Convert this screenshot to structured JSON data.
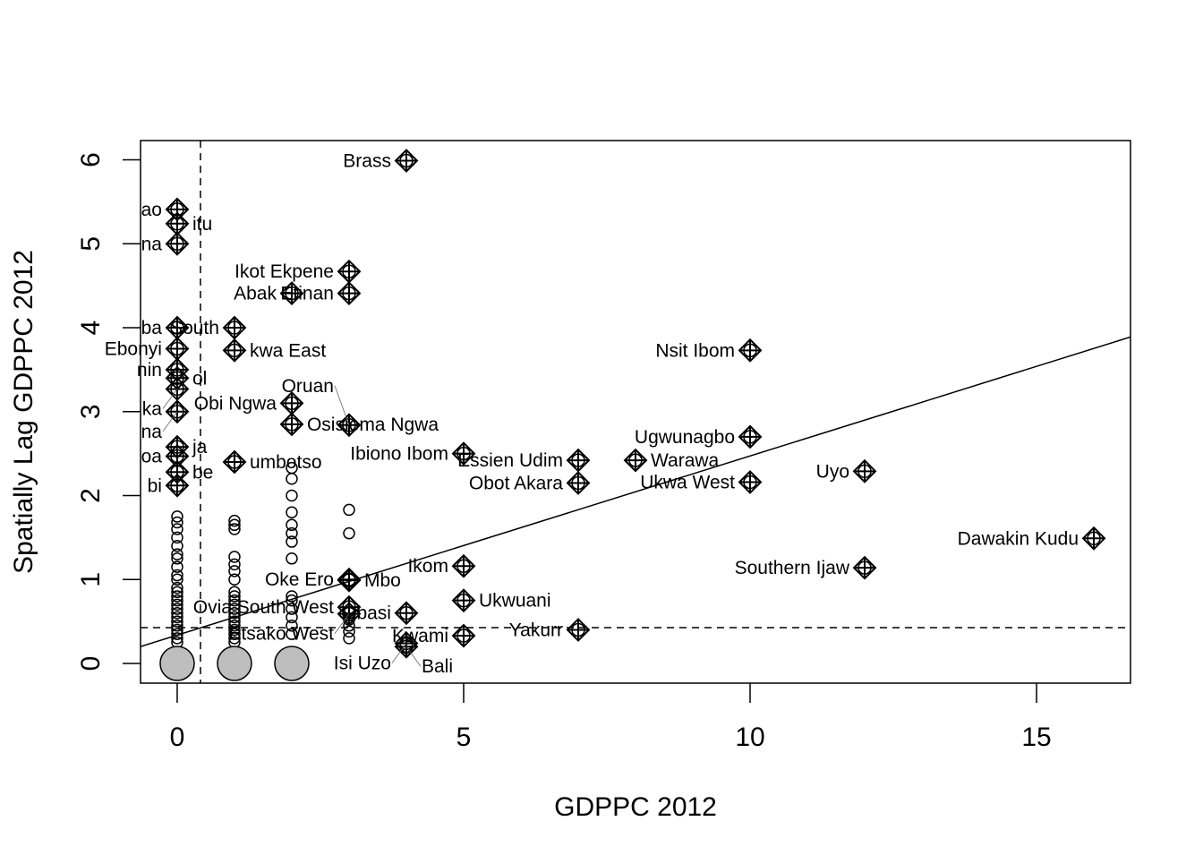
{
  "chart_data": {
    "type": "scatter",
    "title": "",
    "xlabel": "GDPPC 2012",
    "ylabel": "Spatially Lag GDPPC 2012",
    "xlim": [
      -0.64,
      16.64
    ],
    "ylim": [
      -0.235,
      6.23
    ],
    "xticks": [
      0,
      5,
      10,
      15
    ],
    "yticks": [
      0,
      1,
      2,
      3,
      4,
      5,
      6
    ],
    "mean_x": 0.406,
    "mean_y": 0.427,
    "regression": {
      "intercept": 0.337,
      "slope": 0.2135
    },
    "regular_points": [
      {
        "x": 0,
        "y": [
          0.25,
          0.3,
          0.35,
          0.4,
          0.45,
          0.5,
          0.55,
          0.6,
          0.65,
          0.7,
          0.75,
          0.8,
          0.85,
          0.9,
          1.0,
          1.05,
          1.15,
          1.25,
          1.3,
          1.4,
          1.5,
          1.6,
          1.68,
          1.75
        ]
      },
      {
        "x": 1,
        "y": [
          0.25,
          0.3,
          0.35,
          0.4,
          0.45,
          0.5,
          0.55,
          0.6,
          0.65,
          0.7,
          0.75,
          0.8,
          0.85,
          1.0,
          1.1,
          1.18,
          1.27,
          1.6,
          1.65,
          1.7
        ]
      },
      {
        "x": 2,
        "y": [
          0.35,
          0.45,
          0.55,
          0.65,
          0.75,
          0.8,
          1.25,
          1.45,
          1.55,
          1.65,
          1.8,
          2.0,
          2.2,
          2.33
        ]
      },
      {
        "x": 3,
        "y": [
          0.3,
          0.38,
          0.45,
          0.52,
          1.55,
          1.83
        ]
      }
    ],
    "zero_points": [
      {
        "x": 0,
        "y": 0
      },
      {
        "x": 1,
        "y": 0
      },
      {
        "x": 2,
        "y": 0
      }
    ],
    "influential_points": [
      {
        "x": 4,
        "y": 5.99,
        "label": "Brass"
      },
      {
        "x": 0,
        "y": 5.41,
        "label": "ao"
      },
      {
        "x": 0,
        "y": 5.24,
        "label": "itu"
      },
      {
        "x": 0,
        "y": 5.0,
        "label": "na"
      },
      {
        "x": 3,
        "y": 4.67,
        "label": "Ikot Ekpene"
      },
      {
        "x": 2,
        "y": 4.41,
        "label": "Abak"
      },
      {
        "x": 3,
        "y": 4.41,
        "label": "Etinan"
      },
      {
        "x": 0,
        "y": 4.0,
        "label": "ba"
      },
      {
        "x": 1,
        "y": 4.0,
        "label": "South"
      },
      {
        "x": 0,
        "y": 3.75,
        "label": "Ebonyi"
      },
      {
        "x": 1,
        "y": 3.73,
        "label": "kwa East"
      },
      {
        "x": 10,
        "y": 3.73,
        "label": "Nsit Ibom"
      },
      {
        "x": 0,
        "y": 3.5,
        "label": "nin"
      },
      {
        "x": 0,
        "y": 3.4,
        "label": "ol"
      },
      {
        "x": 0,
        "y": 3.27,
        "label": "ka"
      },
      {
        "x": 2,
        "y": 3.1,
        "label": "Obi Ngwa"
      },
      {
        "x": 0,
        "y": 3.0,
        "label": "na"
      },
      {
        "x": 2,
        "y": 2.85,
        "label": "Osisioma Ngwa"
      },
      {
        "x": 3,
        "y": 2.84,
        "label": "Oruan"
      },
      {
        "x": 10,
        "y": 2.7,
        "label": "Ugwunagbo"
      },
      {
        "x": 0,
        "y": 2.58,
        "label": "ja"
      },
      {
        "x": 5,
        "y": 2.5,
        "label": "Ibiono Ibom"
      },
      {
        "x": 0,
        "y": 2.47,
        "label": "oa"
      },
      {
        "x": 7,
        "y": 2.42,
        "label": "Essien Udim"
      },
      {
        "x": 8,
        "y": 2.42,
        "label": "Warawa"
      },
      {
        "x": 1,
        "y": 2.4,
        "label": "umbotso"
      },
      {
        "x": 12,
        "y": 2.29,
        "label": "Uyo"
      },
      {
        "x": 0,
        "y": 2.28,
        "label": "be"
      },
      {
        "x": 7,
        "y": 2.15,
        "label": "Obot Akara"
      },
      {
        "x": 10,
        "y": 2.16,
        "label": "Ukwa West"
      },
      {
        "x": 0,
        "y": 2.12,
        "label": "bi"
      },
      {
        "x": 16,
        "y": 1.49,
        "label": "Dawakin Kudu"
      },
      {
        "x": 5,
        "y": 1.16,
        "label": "Ikom"
      },
      {
        "x": 12,
        "y": 1.14,
        "label": "Southern Ijaw"
      },
      {
        "x": 3,
        "y": 1.0,
        "label": "Oke Ero"
      },
      {
        "x": 3,
        "y": 0.99,
        "label": "Mbo"
      },
      {
        "x": 5,
        "y": 0.75,
        "label": "Ukwuani"
      },
      {
        "x": 3,
        "y": 0.67,
        "label": "Ovia South West"
      },
      {
        "x": 4,
        "y": 0.6,
        "label": "Obasi"
      },
      {
        "x": 3,
        "y": 0.59,
        "label": "Etsako West"
      },
      {
        "x": 7,
        "y": 0.4,
        "label": "Yakurr"
      },
      {
        "x": 5,
        "y": 0.33,
        "label": "Kwami"
      },
      {
        "x": 4,
        "y": 0.24,
        "label": "Isi Uzo"
      },
      {
        "x": 4,
        "y": 0.2,
        "label": "Bali"
      }
    ],
    "colors": {
      "zero_fill": "#bebebe",
      "stroke": "#000000"
    }
  }
}
